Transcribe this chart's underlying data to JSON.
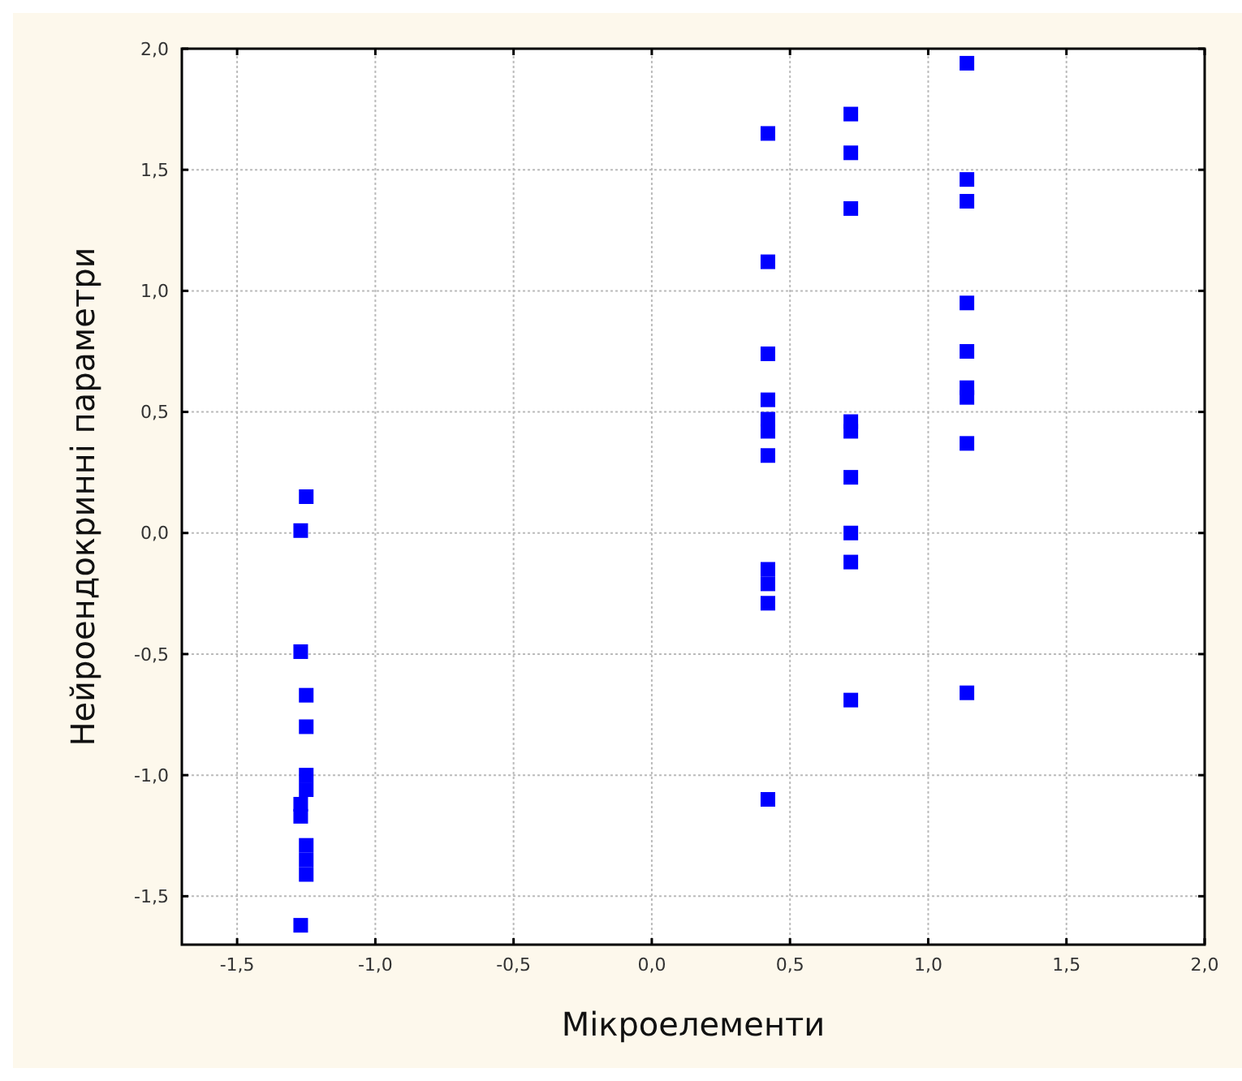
{
  "chart_data": {
    "type": "scatter",
    "xlabel": "Мікроелементи",
    "ylabel": "Нейроендокринні параметри",
    "marker": "square",
    "grid": true,
    "xlim": [
      -1.7,
      2.0
    ],
    "ylim": [
      -1.7,
      2.0
    ],
    "xticks": [
      {
        "value": -1.5,
        "label": "-1,5"
      },
      {
        "value": -1,
        "label": "-1,0"
      },
      {
        "value": -0.5,
        "label": "-0,5"
      },
      {
        "value": 0,
        "label": "0,0"
      },
      {
        "value": 0.5,
        "label": "0,5"
      },
      {
        "value": 1,
        "label": "1,0"
      },
      {
        "value": 1.5,
        "label": "1,5"
      },
      {
        "value": 2,
        "label": "2,0"
      }
    ],
    "yticks": [
      {
        "value": -1.5,
        "label": "-1,5"
      },
      {
        "value": -1,
        "label": "-1,0"
      },
      {
        "value": -0.5,
        "label": "-0,5"
      },
      {
        "value": 0,
        "label": "0,0"
      },
      {
        "value": 0.5,
        "label": "0,5"
      },
      {
        "value": 1,
        "label": "1,0"
      },
      {
        "value": 1.5,
        "label": "1,5"
      },
      {
        "value": 2,
        "label": "2,0"
      }
    ],
    "series": [
      {
        "color": "#0000ff",
        "x": [
          -1.25,
          -1.27,
          -1.27,
          -1.25,
          -1.25,
          -1.25,
          -1.25,
          -1.27,
          -1.27,
          -1.25,
          -1.25,
          -1.25,
          -1.27,
          0.42,
          0.42,
          0.42,
          0.42,
          0.42,
          0.42,
          0.42,
          0.42,
          0.42,
          0.42,
          0.42,
          0.72,
          0.72,
          0.72,
          0.72,
          0.72,
          0.72,
          0.72,
          0.72,
          0.72,
          1.14,
          1.14,
          1.14,
          1.14,
          1.14,
          1.14,
          1.14,
          1.14,
          1.14
        ],
        "values": [
          0.15,
          0.01,
          -0.49,
          -0.67,
          -0.8,
          -1.0,
          -1.06,
          -1.12,
          -1.17,
          -1.29,
          -1.35,
          -1.41,
          -1.62,
          1.65,
          1.12,
          0.74,
          0.55,
          0.47,
          0.42,
          0.32,
          -0.15,
          -0.21,
          -0.29,
          -1.1,
          1.73,
          1.57,
          1.34,
          0.46,
          0.42,
          0.23,
          0.0,
          -0.12,
          -0.69,
          1.94,
          1.46,
          1.37,
          0.95,
          0.75,
          0.6,
          0.56,
          0.37,
          -0.66
        ]
      }
    ]
  }
}
